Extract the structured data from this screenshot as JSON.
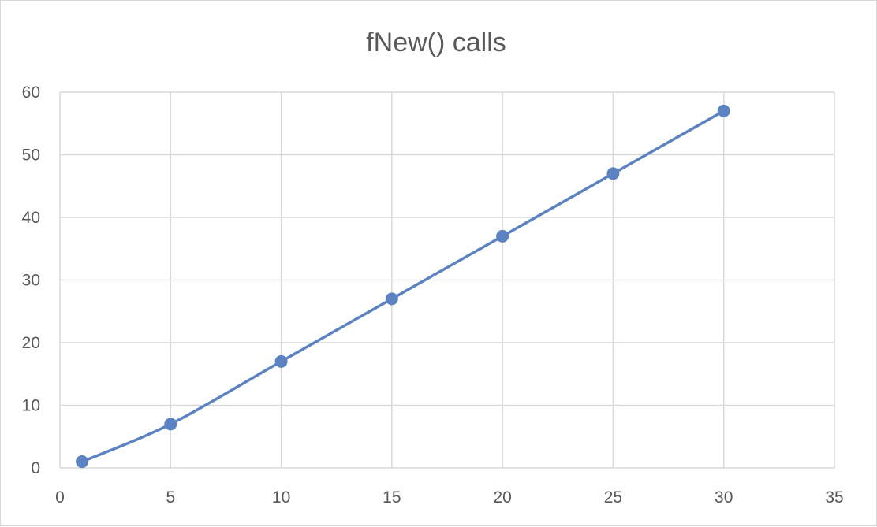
{
  "chart_data": {
    "type": "scatter",
    "title": "fNew() calls",
    "xlabel": "",
    "ylabel": "",
    "xlim": [
      0,
      35
    ],
    "ylim": [
      0,
      60
    ],
    "x_ticks": [
      0,
      5,
      10,
      15,
      20,
      25,
      30,
      35
    ],
    "y_ticks": [
      0,
      10,
      20,
      30,
      40,
      50,
      60
    ],
    "grid": true,
    "legend": "none",
    "smooth_line": true,
    "series": [
      {
        "color": "#5b83c3",
        "x": [
          1,
          5,
          10,
          15,
          20,
          25,
          30
        ],
        "y": [
          1,
          7,
          17,
          27,
          37,
          47,
          57
        ]
      }
    ]
  }
}
